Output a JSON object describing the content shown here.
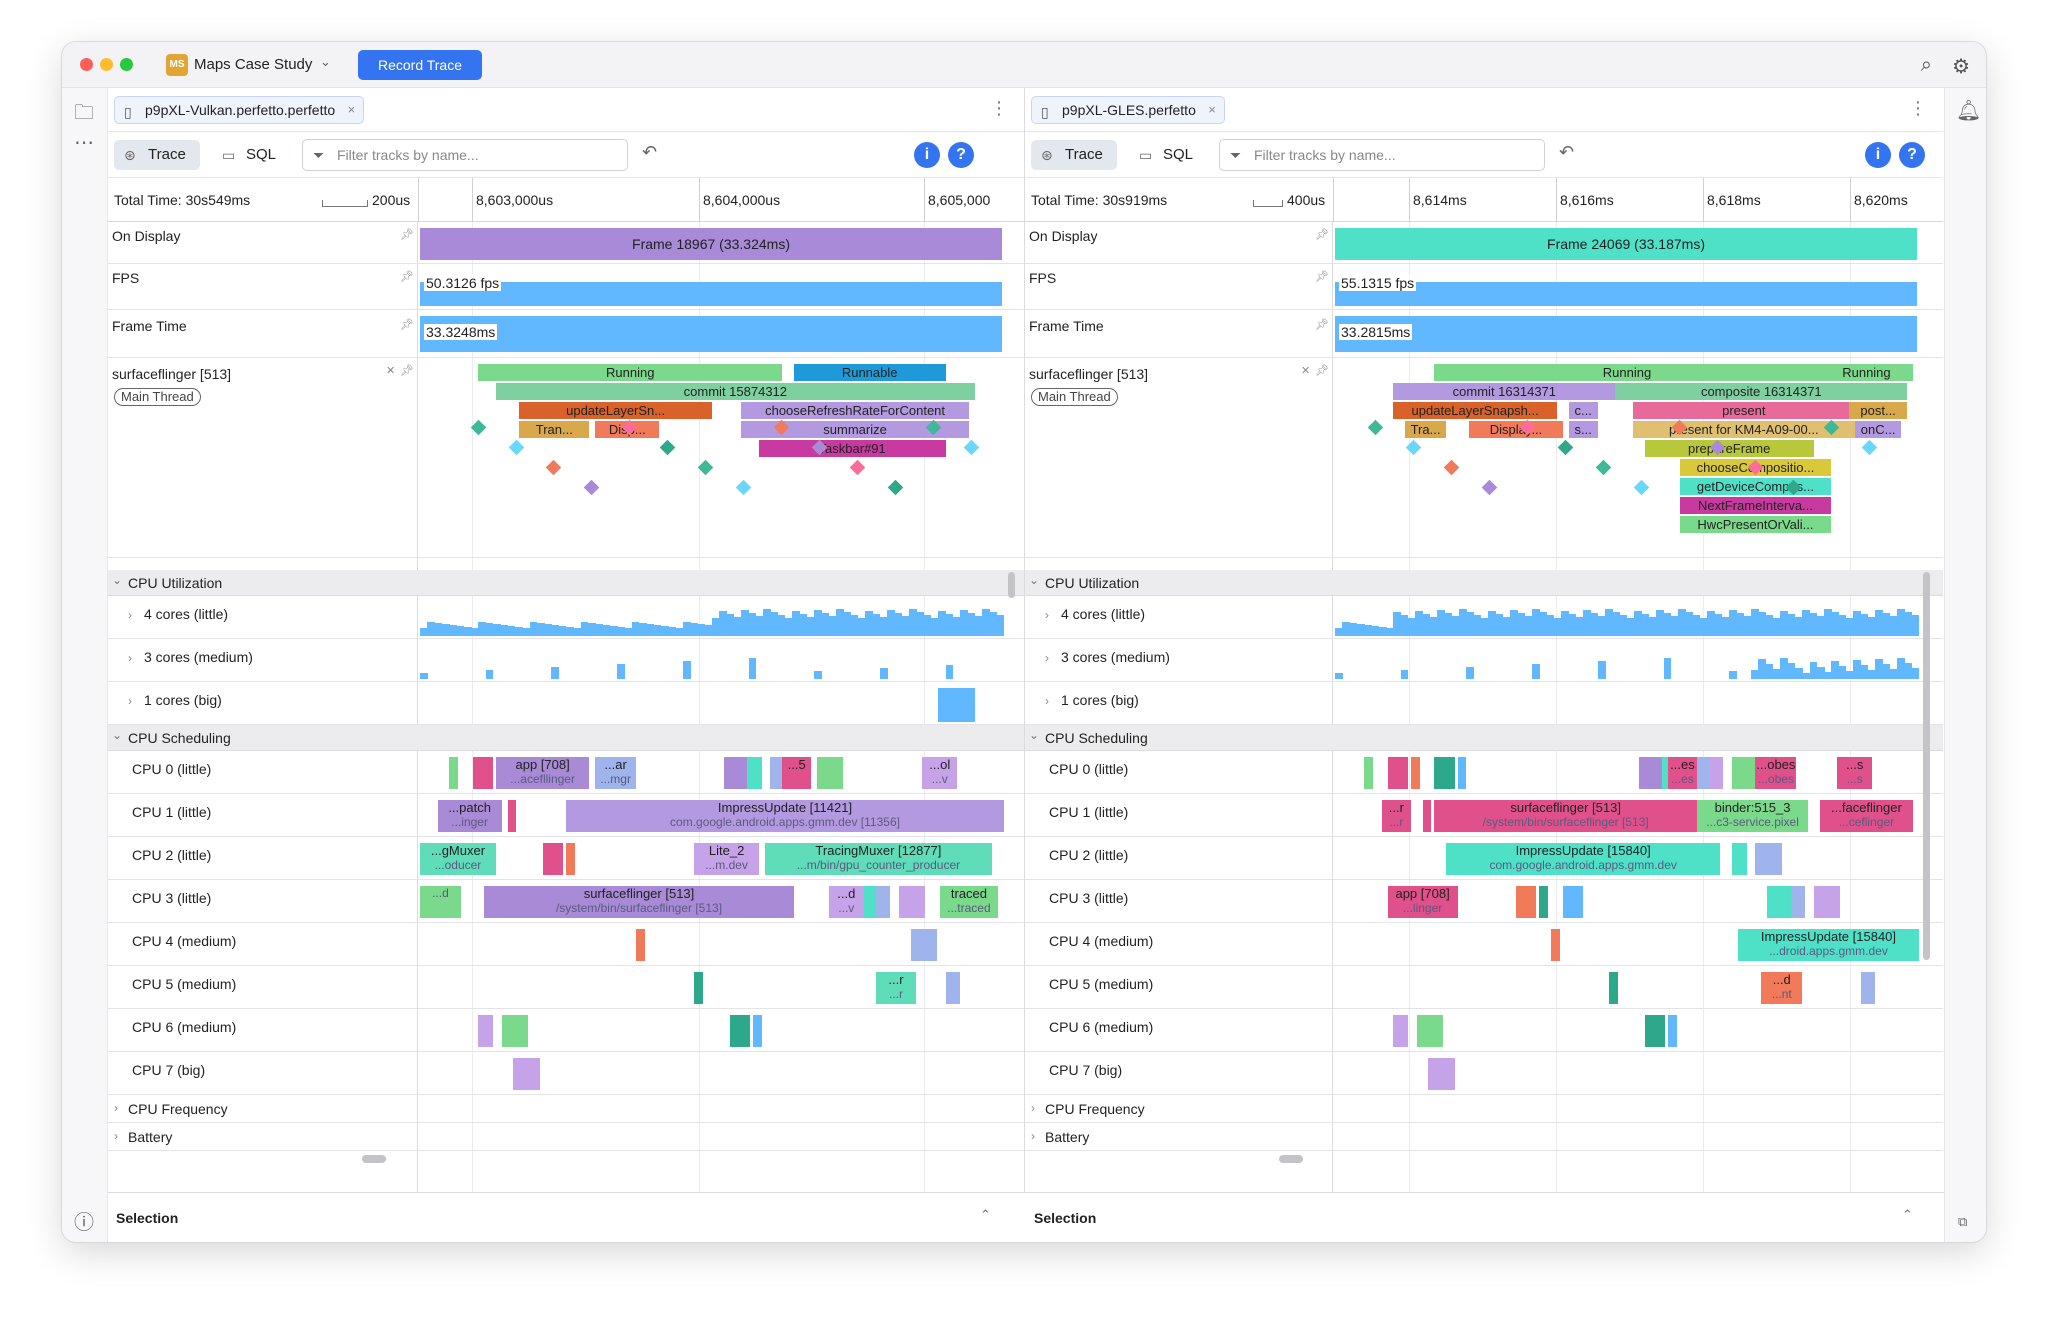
{
  "app": {
    "project_initials": "MS",
    "project_name": "Maps Case Study",
    "record_label": "Record Trace",
    "accent": "#3574f0"
  },
  "sidebar": {
    "icons": [
      "folder-icon",
      "more-icon",
      "info-icon"
    ]
  },
  "bottom": {
    "left_label": "Selection",
    "right_label": "Selection"
  },
  "panes": [
    {
      "file": "p9pXL-Vulkan.perfetto.perfetto",
      "trace_label": "Trace",
      "sql_label": "SQL",
      "filter_placeholder": "Filter tracks by name...",
      "total_time": "Total Time: 30s549ms",
      "scale": "200us",
      "ticks": [
        "8,603,000us",
        "8,604,000us",
        "8,605,000"
      ],
      "on_display": {
        "name": "On Display",
        "label": "Frame 18967 (33.324ms)",
        "color": "#a88ad8"
      },
      "fps": {
        "name": "FPS",
        "value": "50.3126 fps"
      },
      "frame_time": {
        "name": "Frame Time",
        "value": "33.3248ms"
      },
      "thread": {
        "name": "surfaceflinger [513]",
        "badge": "Main Thread"
      },
      "thread_slices": [
        {
          "label": "Running",
          "color": "#7ad98a",
          "row": 0
        },
        {
          "label": "Runnable",
          "color": "#1f9ad8",
          "row": 0
        },
        {
          "label": "commit 15874312",
          "color": "#7ed0a0",
          "row": 1
        },
        {
          "label": "updateLayerSn...",
          "color": "#d8622a",
          "row": 2
        },
        {
          "label": "chooseRefreshRateForContent",
          "color": "#b39ae0",
          "row": 2
        },
        {
          "label": "Tran...",
          "color": "#d8a84a",
          "row": 3
        },
        {
          "label": "Disp...",
          "color": "#f07a5a",
          "row": 3
        },
        {
          "label": "summarize",
          "color": "#b39ae0",
          "row": 3
        },
        {
          "label": "Taskbar#91",
          "color": "#c83aa0",
          "row": 4
        }
      ],
      "cpu_util": {
        "group": "CPU Utilization",
        "rows": [
          "4 cores (little)",
          "3 cores (medium)",
          "1 cores (big)"
        ]
      },
      "cpu_sched": {
        "group": "CPU Scheduling",
        "rows": [
          {
            "name": "CPU 0 (little)",
            "blocks": [
              {
                "t": "app [708]",
                "s": "...acefllinger",
                "c": "#a98ad6"
              },
              {
                "t": "...ar",
                "s": "...mgr",
                "c": "#9fb4ec"
              },
              {
                "t": "...5",
                "s": "",
                "c": "#e0508a"
              },
              {
                "t": "...ol",
                "s": "...v",
                "c": "#c6a2e8"
              }
            ]
          },
          {
            "name": "CPU 1 (little)",
            "blocks": [
              {
                "t": "...patch",
                "s": "...inger",
                "c": "#a98ad6"
              },
              {
                "t": "ImpressUpdate [11421]",
                "s": "com.google.android.apps.gmm.dev [11356]",
                "c": "#b39ae0"
              }
            ]
          },
          {
            "name": "CPU 2 (little)",
            "blocks": [
              {
                "t": "...gMuxer",
                "s": "...oducer",
                "c": "#5fdcb8"
              },
              {
                "t": "Lite_2",
                "s": "...m.dev",
                "c": "#c6a2e8"
              },
              {
                "t": "TracingMuxer [12877]",
                "s": "...m/bin/gpu_counter_producer",
                "c": "#5fdcb8"
              }
            ]
          },
          {
            "name": "CPU 3 (little)",
            "blocks": [
              {
                "t": "",
                "s": "...d",
                "c": "#7ad98a"
              },
              {
                "t": "surfaceflinger [513]",
                "s": "/system/bin/surfaceflinger [513]",
                "c": "#a98ad6"
              },
              {
                "t": "...d",
                "s": "...v",
                "c": "#c6a2e8"
              },
              {
                "t": "traced",
                "s": "...traced",
                "c": "#7ad98a"
              }
            ]
          },
          {
            "name": "CPU 4 (medium)",
            "blocks": []
          },
          {
            "name": "CPU 5 (medium)",
            "blocks": [
              {
                "t": "...r",
                "s": "...r",
                "c": "#5fdcb8"
              }
            ]
          },
          {
            "name": "CPU 6 (medium)",
            "blocks": []
          },
          {
            "name": "CPU 7 (big)",
            "blocks": []
          }
        ]
      },
      "extra_groups": [
        "CPU Frequency",
        "Battery"
      ]
    },
    {
      "file": "p9pXL-GLES.perfetto",
      "trace_label": "Trace",
      "sql_label": "SQL",
      "filter_placeholder": "Filter tracks by name...",
      "total_time": "Total Time: 30s919ms",
      "scale": "400us",
      "ticks": [
        "8,614ms",
        "8,616ms",
        "8,618ms",
        "8,620ms"
      ],
      "on_display": {
        "name": "On Display",
        "label": "Frame 24069 (33.187ms)",
        "color": "#4fe0c8"
      },
      "fps": {
        "name": "FPS",
        "value": "55.1315 fps"
      },
      "frame_time": {
        "name": "Frame Time",
        "value": "33.2815ms"
      },
      "thread": {
        "name": "surfaceflinger [513]",
        "badge": "Main Thread"
      },
      "thread_slices": [
        {
          "label": "Running",
          "color": "#7ad98a",
          "row": 0
        },
        {
          "label": "Running",
          "color": "#7ad98a",
          "row": 0
        },
        {
          "label": "commit 16314371",
          "color": "#b39ae0",
          "row": 1
        },
        {
          "label": "composite 16314371",
          "color": "#7ed0a0",
          "row": 1
        },
        {
          "label": "updateLayerSnapsh...",
          "color": "#d8622a",
          "row": 2
        },
        {
          "label": "c...",
          "color": "#b39ae0",
          "row": 2
        },
        {
          "label": "present",
          "color": "#e86a9a",
          "row": 2
        },
        {
          "label": "post...",
          "color": "#d8a84a",
          "row": 2
        },
        {
          "label": "Tra...",
          "color": "#d8a84a",
          "row": 3
        },
        {
          "label": "Display...",
          "color": "#f07a5a",
          "row": 3
        },
        {
          "label": "s...",
          "color": "#b39ae0",
          "row": 3
        },
        {
          "label": "present for KM4-A09-00...",
          "color": "#e0c070",
          "row": 3
        },
        {
          "label": "onC...",
          "color": "#b39ae0",
          "row": 3
        },
        {
          "label": "prepareFrame",
          "color": "#b9c83a",
          "row": 4
        },
        {
          "label": "chooseCompositio...",
          "color": "#d8c83a",
          "row": 5
        },
        {
          "label": "getDeviceCompos...",
          "color": "#4fe0c8",
          "row": 6
        },
        {
          "label": "NextFrameInterva...",
          "color": "#c83aa0",
          "row": 7
        },
        {
          "label": "HwcPresentOrVali...",
          "color": "#7ad98a",
          "row": 8
        }
      ],
      "cpu_util": {
        "group": "CPU Utilization",
        "rows": [
          "4 cores (little)",
          "3 cores (medium)",
          "1 cores (big)"
        ]
      },
      "cpu_sched": {
        "group": "CPU Scheduling",
        "rows": [
          {
            "name": "CPU 0 (little)",
            "blocks": [
              {
                "t": "...es",
                "s": "...es",
                "c": "#e0508a"
              },
              {
                "t": "...obes",
                "s": "...obes",
                "c": "#e0508a"
              },
              {
                "t": "...s",
                "s": "...s",
                "c": "#e0508a"
              }
            ]
          },
          {
            "name": "CPU 1 (little)",
            "blocks": [
              {
                "t": "...r",
                "s": "...r",
                "c": "#e0508a"
              },
              {
                "t": "surfaceflinger [513]",
                "s": "/system/bin/surfaceflinger [513]",
                "c": "#e0508a"
              },
              {
                "t": "binder:515_3",
                "s": "...c3-service.pixel",
                "c": "#7ad98a"
              },
              {
                "t": "...faceflinger",
                "s": "...ceflinger",
                "c": "#e0508a"
              }
            ]
          },
          {
            "name": "CPU 2 (little)",
            "blocks": [
              {
                "t": "ImpressUpdate [15840]",
                "s": "com.google.android.apps.gmm.dev",
                "c": "#4fe0c8"
              }
            ]
          },
          {
            "name": "CPU 3 (little)",
            "blocks": [
              {
                "t": "app [708]",
                "s": "...linger",
                "c": "#e0508a"
              }
            ]
          },
          {
            "name": "CPU 4 (medium)",
            "blocks": [
              {
                "t": "ImpressUpdate [15840]",
                "s": "...droid.apps.gmm.dev",
                "c": "#4fe0c8"
              }
            ]
          },
          {
            "name": "CPU 5 (medium)",
            "blocks": [
              {
                "t": "...d",
                "s": "...nt",
                "c": "#f07a5a"
              }
            ]
          },
          {
            "name": "CPU 6 (medium)",
            "blocks": []
          },
          {
            "name": "CPU 7 (big)",
            "blocks": []
          }
        ]
      },
      "extra_groups": [
        "CPU Frequency",
        "Battery"
      ]
    }
  ]
}
